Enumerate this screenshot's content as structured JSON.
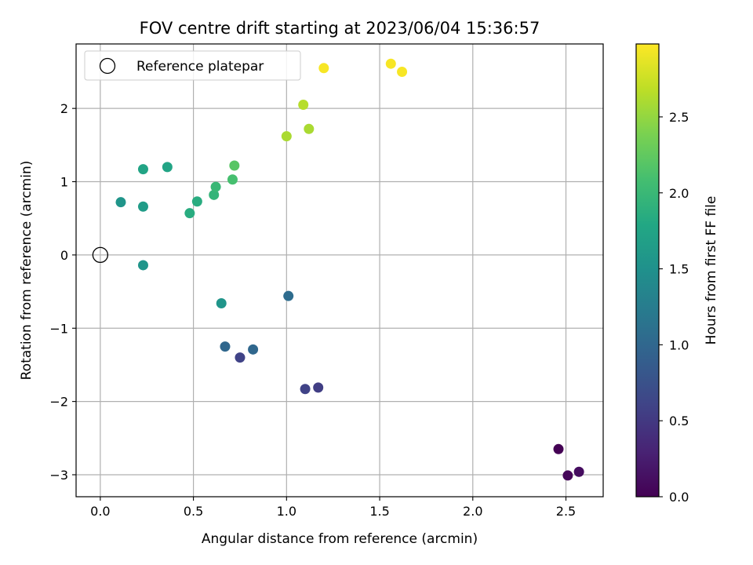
{
  "chart_data": {
    "type": "scatter",
    "title": "FOV centre drift starting at 2023/06/04 15:36:57",
    "xlabel": "Angular distance from reference (arcmin)",
    "ylabel": "Rotation from reference (arcmin)",
    "xlim": [
      -0.13,
      2.7
    ],
    "ylim": [
      -3.3,
      2.88
    ],
    "x_ticks": [
      0.0,
      0.5,
      1.0,
      1.5,
      2.0,
      2.5
    ],
    "x_tick_labels": [
      "0.0",
      "0.5",
      "1.0",
      "1.5",
      "2.0",
      "2.5"
    ],
    "y_ticks": [
      -3,
      -2,
      -1,
      0,
      1,
      2
    ],
    "y_tick_labels": [
      "−3",
      "−2",
      "−1",
      "0",
      "1",
      "2"
    ],
    "grid": true,
    "legend": {
      "placement": "top-left",
      "entries": [
        {
          "label": "Reference platepar",
          "marker": "open-circle",
          "color": "#000000"
        }
      ]
    },
    "reference_point": {
      "x": 0.0,
      "y": 0.0
    },
    "colorbar": {
      "label": "Hours from first FF file",
      "range": [
        0.0,
        2.98
      ],
      "ticks": [
        0.0,
        0.5,
        1.0,
        1.5,
        2.0,
        2.5
      ],
      "tick_labels": [
        "0.0",
        "0.5",
        "1.0",
        "1.5",
        "2.0",
        "2.5"
      ],
      "colormap": "viridis"
    },
    "points": [
      {
        "x": 2.46,
        "y": -2.65,
        "hours": 0.0
      },
      {
        "x": 2.51,
        "y": -3.01,
        "hours": 0.05
      },
      {
        "x": 2.57,
        "y": -2.96,
        "hours": 0.1
      },
      {
        "x": 1.17,
        "y": -1.81,
        "hours": 0.55
      },
      {
        "x": 1.1,
        "y": -1.83,
        "hours": 0.6
      },
      {
        "x": 0.75,
        "y": -1.4,
        "hours": 0.6
      },
      {
        "x": 0.82,
        "y": -1.29,
        "hours": 1.0
      },
      {
        "x": 0.67,
        "y": -1.25,
        "hours": 1.0
      },
      {
        "x": 1.01,
        "y": -0.56,
        "hours": 1.05
      },
      {
        "x": 0.65,
        "y": -0.66,
        "hours": 1.55
      },
      {
        "x": 0.23,
        "y": -0.14,
        "hours": 1.55
      },
      {
        "x": 0.11,
        "y": 0.72,
        "hours": 1.55
      },
      {
        "x": 0.23,
        "y": 0.66,
        "hours": 1.65
      },
      {
        "x": 0.23,
        "y": 1.17,
        "hours": 1.75
      },
      {
        "x": 0.36,
        "y": 1.2,
        "hours": 1.75
      },
      {
        "x": 0.48,
        "y": 0.57,
        "hours": 1.85
      },
      {
        "x": 0.52,
        "y": 0.73,
        "hours": 1.85
      },
      {
        "x": 0.61,
        "y": 0.82,
        "hours": 1.95
      },
      {
        "x": 0.62,
        "y": 0.93,
        "hours": 2.0
      },
      {
        "x": 0.71,
        "y": 1.03,
        "hours": 2.1
      },
      {
        "x": 0.72,
        "y": 1.22,
        "hours": 2.2
      },
      {
        "x": 1.0,
        "y": 1.62,
        "hours": 2.6
      },
      {
        "x": 1.12,
        "y": 1.72,
        "hours": 2.6
      },
      {
        "x": 1.09,
        "y": 2.05,
        "hours": 2.65
      },
      {
        "x": 1.2,
        "y": 2.55,
        "hours": 2.95
      },
      {
        "x": 1.56,
        "y": 2.61,
        "hours": 2.95
      },
      {
        "x": 1.62,
        "y": 2.5,
        "hours": 2.95
      }
    ]
  }
}
